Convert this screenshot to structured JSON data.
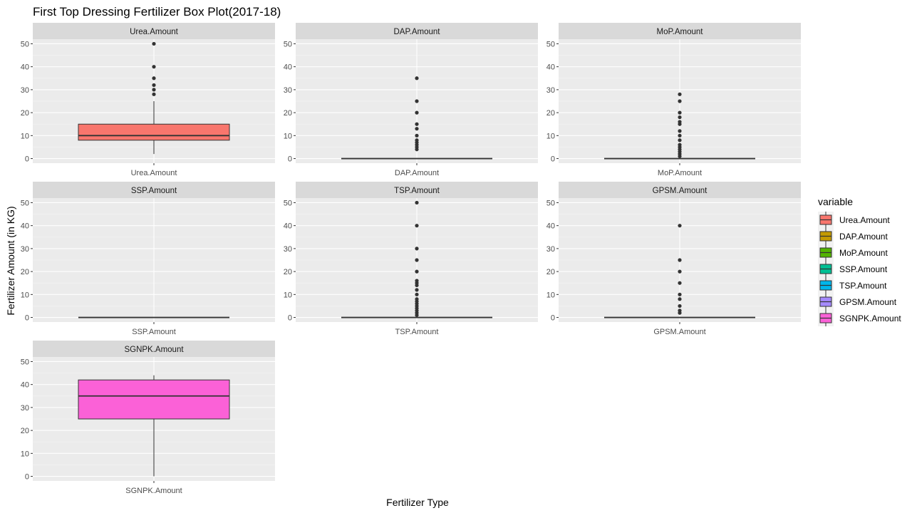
{
  "chart_data": {
    "type": "box",
    "title": "First Top Dressing Fertilizer Box Plot(2017-18)",
    "xlabel": "Fertilizer Type",
    "ylabel": "Fertilizer Amount (in KG)",
    "ylim": [
      -2,
      52
    ],
    "yticks": [
      0,
      10,
      20,
      30,
      40,
      50
    ],
    "grid": true,
    "legend": {
      "title": "variable",
      "placement": "right",
      "entries": [
        "Urea.Amount",
        "DAP.Amount",
        "MoP.Amount",
        "SSP.Amount",
        "TSP.Amount",
        "GPSM.Amount",
        "SGNPK.Amount"
      ]
    },
    "panels": [
      {
        "name": "Urea.Amount",
        "color": "#F8766D",
        "stats": {
          "lower_whisker": 2,
          "q1": 8,
          "median": 10,
          "q3": 15,
          "upper_whisker": 25
        },
        "outliers": [
          28,
          30,
          32,
          35,
          40,
          50
        ]
      },
      {
        "name": "DAP.Amount",
        "color": "#C49A00",
        "stats": {
          "lower_whisker": 0,
          "q1": 0,
          "median": 0,
          "q3": 0,
          "upper_whisker": 0
        },
        "outliers": [
          4,
          5,
          6,
          7,
          8,
          10,
          13,
          15,
          20,
          25,
          35
        ]
      },
      {
        "name": "MoP.Amount",
        "color": "#53B400",
        "stats": {
          "lower_whisker": 0,
          "q1": 0,
          "median": 0,
          "q3": 0,
          "upper_whisker": 0
        },
        "outliers": [
          1,
          2,
          3,
          4,
          5,
          6,
          8,
          10,
          12,
          15,
          16,
          18,
          20,
          25,
          28
        ]
      },
      {
        "name": "SSP.Amount",
        "color": "#00C094",
        "stats": {
          "lower_whisker": 0,
          "q1": 0,
          "median": 0,
          "q3": 0,
          "upper_whisker": 0
        },
        "outliers": []
      },
      {
        "name": "TSP.Amount",
        "color": "#00B6EB",
        "stats": {
          "lower_whisker": 0,
          "q1": 0,
          "median": 0,
          "q3": 0,
          "upper_whisker": 0
        },
        "outliers": [
          1,
          2,
          3,
          4,
          5,
          6,
          7,
          8,
          10,
          12,
          14,
          15,
          16,
          20,
          25,
          30,
          40,
          50
        ]
      },
      {
        "name": "GPSM.Amount",
        "color": "#A58AFF",
        "stats": {
          "lower_whisker": 0,
          "q1": 0,
          "median": 0,
          "q3": 0,
          "upper_whisker": 0
        },
        "outliers": [
          2,
          3,
          5,
          8,
          10,
          15,
          20,
          25,
          40
        ]
      },
      {
        "name": "SGNPK.Amount",
        "color": "#FB61D7",
        "stats": {
          "lower_whisker": 0,
          "q1": 25,
          "median": 35,
          "q3": 42,
          "upper_whisker": 44
        },
        "outliers": []
      }
    ]
  }
}
